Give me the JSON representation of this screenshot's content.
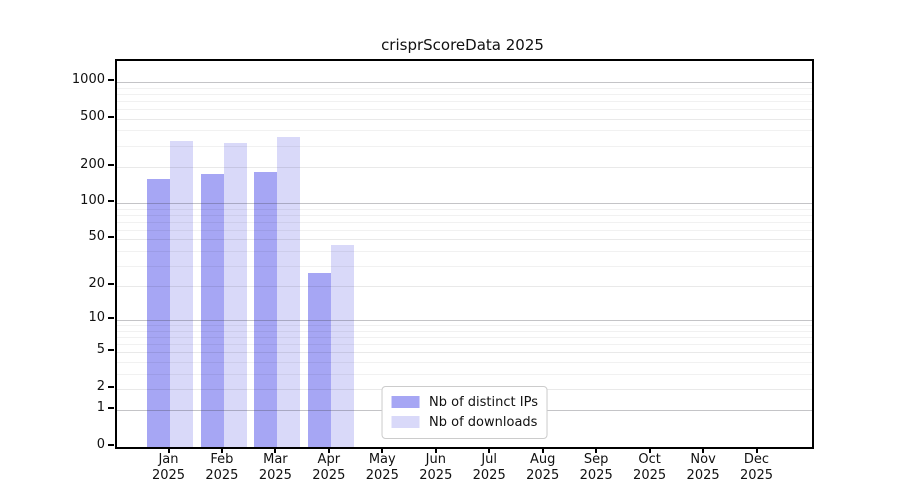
{
  "chart_data": {
    "type": "bar",
    "title": "crisprScoreData 2025",
    "categories": [
      "Jan",
      "Feb",
      "Mar",
      "Apr",
      "May",
      "Jun",
      "Jul",
      "Aug",
      "Sep",
      "Oct",
      "Nov",
      "Dec"
    ],
    "category_sublabel": "2025",
    "series": [
      {
        "name": "Nb of distinct IPs",
        "color": "#a6a6f4",
        "values": [
          160,
          175,
          180,
          26,
          0,
          0,
          0,
          0,
          0,
          0,
          0,
          0
        ]
      },
      {
        "name": "Nb of downloads",
        "color": "#d9d9f9",
        "values": [
          330,
          315,
          350,
          45,
          0,
          0,
          0,
          0,
          0,
          0,
          0,
          0
        ]
      }
    ],
    "xlabel": "",
    "ylabel": "",
    "yscale": "log1p",
    "ylim": [
      0,
      1500
    ],
    "y_ticks": [
      0,
      1,
      2,
      5,
      10,
      20,
      50,
      100,
      200,
      500,
      1000
    ],
    "y_minor_gridlines": [
      3,
      4,
      6,
      7,
      8,
      9,
      30,
      40,
      60,
      70,
      80,
      90,
      300,
      400,
      600,
      700,
      800,
      900
    ],
    "grid": true,
    "legend_position": "lower center"
  },
  "colors": {
    "axis_spine": "#000000",
    "gridline_major": "#c4c4c8",
    "gridline_minor": "#f0f0f0",
    "legend_border": "#cccccc",
    "background": "#ffffff"
  }
}
